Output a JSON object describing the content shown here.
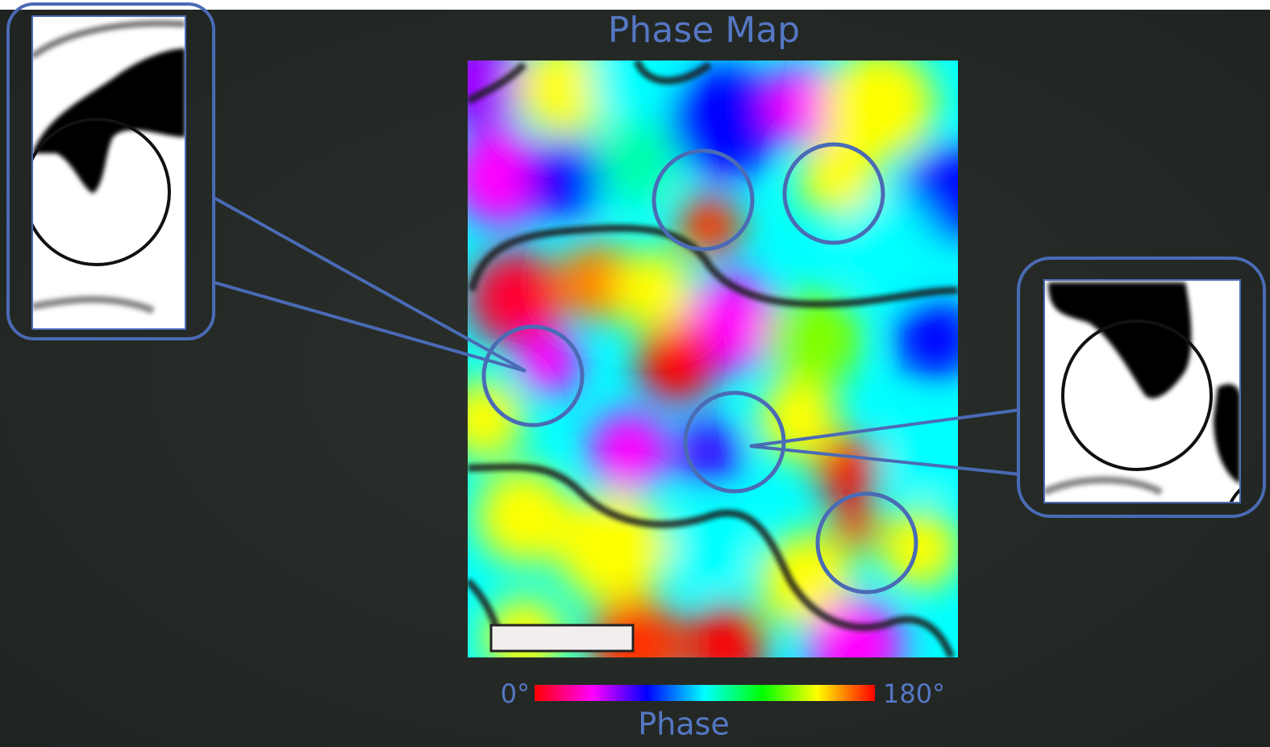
{
  "title": "Phase Map",
  "colorbar": {
    "min_label": "0°",
    "max_label": "180°",
    "label": "Phase"
  }
}
